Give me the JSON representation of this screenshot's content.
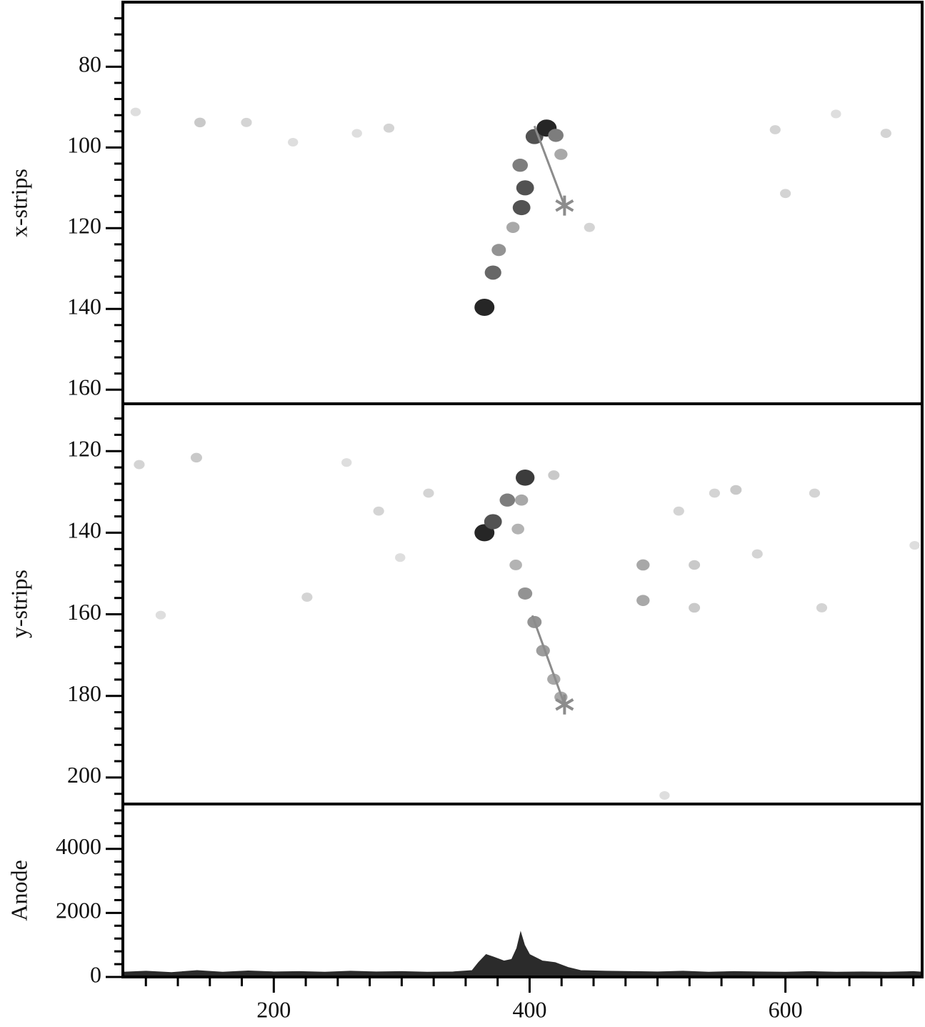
{
  "chart_data": [
    {
      "type": "heatmap",
      "ylabel": "x-strips",
      "y_inverted": true,
      "ylim": [
        64,
        163.5
      ],
      "yticks": [
        80,
        100,
        120,
        140,
        160
      ],
      "yminorticks": [
        68,
        72,
        76,
        84,
        88,
        92,
        96,
        104,
        108,
        112,
        116,
        124,
        128,
        132,
        136,
        144,
        148,
        152,
        156
      ],
      "hits": {
        "x": [
          364.7,
          371.4,
          375.9,
          387,
          393.7,
          396.5,
          392.6,
          403.8,
          413.3,
          420.5,
          424.5,
          142.3,
          178.6,
          92,
          265,
          290,
          592,
          639.5,
          678.6,
          600,
          446.8,
          215
        ],
        "y": [
          139.6,
          131,
          125.4,
          119.8,
          114.9,
          110,
          104.4,
          97.3,
          95.2,
          97,
          101.7,
          93.8,
          93.8,
          91.2,
          96.5,
          95.2,
          95.6,
          91.7,
          96.5,
          111.4,
          119.8,
          98.7
        ],
        "intensity": [
          1,
          0.7,
          0.5,
          0.4,
          0.8,
          0.8,
          0.6,
          0.8,
          1,
          0.6,
          0.4,
          0.25,
          0.2,
          0.15,
          0.15,
          0.2,
          0.2,
          0.15,
          0.2,
          0.2,
          0.2,
          0.15
        ]
      },
      "track": {
        "x": [
          403.8,
          427.3
        ],
        "y": [
          94.7,
          114.4
        ]
      },
      "vertex": {
        "x": 427.3,
        "y": 114.4
      },
      "color": "#8c8c8c"
    },
    {
      "type": "heatmap",
      "ylabel": "y-strips",
      "y_inverted": true,
      "ylim": [
        108.4,
        206.5
      ],
      "yticks": [
        120,
        140,
        160,
        180,
        200
      ],
      "yminorticks": [
        112,
        116,
        124,
        128,
        132,
        136,
        144,
        148,
        152,
        156,
        164,
        168,
        172,
        176,
        184,
        188,
        192,
        196,
        204
      ],
      "hits": {
        "x": [
          364.7,
          371.4,
          382.6,
          396.5,
          393.7,
          390.9,
          389.2,
          396.5,
          403.8,
          410.5,
          418.9,
          424.5,
          488.7,
          488.7,
          528.8,
          528.8,
          544.6,
          561.3,
          622.8,
          578,
          628.4,
          139.5,
          94.8,
          282,
          321,
          226,
          111.6,
          516.6,
          701,
          256.9,
          298.8,
          418.9,
          505.5
        ],
        "y": [
          140,
          137.3,
          132,
          126.5,
          132,
          139.1,
          147.9,
          154.9,
          161.9,
          168.9,
          175.9,
          180.3,
          147.9,
          156.6,
          147.9,
          158.4,
          130.3,
          129.5,
          130.3,
          145.2,
          158.4,
          121.6,
          123.3,
          134.7,
          130.3,
          155.8,
          160.2,
          134.7,
          143.1,
          122.8,
          146.1,
          125.9,
          204.4
        ],
        "intensity": [
          1,
          0.8,
          0.6,
          0.9,
          0.4,
          0.35,
          0.35,
          0.5,
          0.5,
          0.45,
          0.4,
          0.4,
          0.4,
          0.4,
          0.25,
          0.25,
          0.2,
          0.25,
          0.2,
          0.2,
          0.2,
          0.25,
          0.2,
          0.2,
          0.2,
          0.2,
          0.15,
          0.2,
          0.15,
          0.15,
          0.15,
          0.25,
          0.15
        ]
      },
      "track": {
        "x": [
          402.1,
          427.3
        ],
        "y": [
          160.3,
          182.1
        ]
      },
      "vertex": {
        "x": 427.3,
        "y": 182.1
      },
      "color": "#8c8c8c"
    },
    {
      "type": "area",
      "ylabel": "Anode",
      "color": "#2b2b2b",
      "x": [
        82,
        100,
        120,
        140,
        160,
        180,
        200,
        220,
        240,
        260,
        280,
        300,
        320,
        340,
        355,
        360,
        366,
        372,
        380,
        386,
        390,
        393,
        396,
        400,
        410,
        420,
        430,
        440,
        460,
        480,
        500,
        520,
        540,
        560,
        580,
        600,
        620,
        640,
        660,
        680,
        700,
        708
      ],
      "values": [
        150,
        180,
        140,
        200,
        150,
        190,
        160,
        170,
        150,
        180,
        160,
        170,
        150,
        160,
        200,
        450,
        700,
        620,
        500,
        550,
        900,
        1400,
        1000,
        700,
        500,
        450,
        300,
        200,
        180,
        170,
        160,
        180,
        150,
        170,
        160,
        150,
        170,
        150,
        160,
        150,
        170,
        150
      ],
      "xlim": [
        82,
        708
      ],
      "xticks": [
        200,
        400,
        600
      ],
      "xminorticks": [
        100,
        125,
        150,
        175,
        225,
        250,
        275,
        300,
        325,
        350,
        375,
        425,
        450,
        475,
        500,
        525,
        550,
        575,
        625,
        650,
        675,
        700
      ],
      "ylim": [
        0,
        5400
      ],
      "yticks": [
        0,
        2000,
        4000
      ],
      "yminorticks": [
        400,
        800,
        1200,
        1600,
        2400,
        2800,
        3200,
        3600,
        4400,
        4800,
        5200
      ]
    }
  ]
}
